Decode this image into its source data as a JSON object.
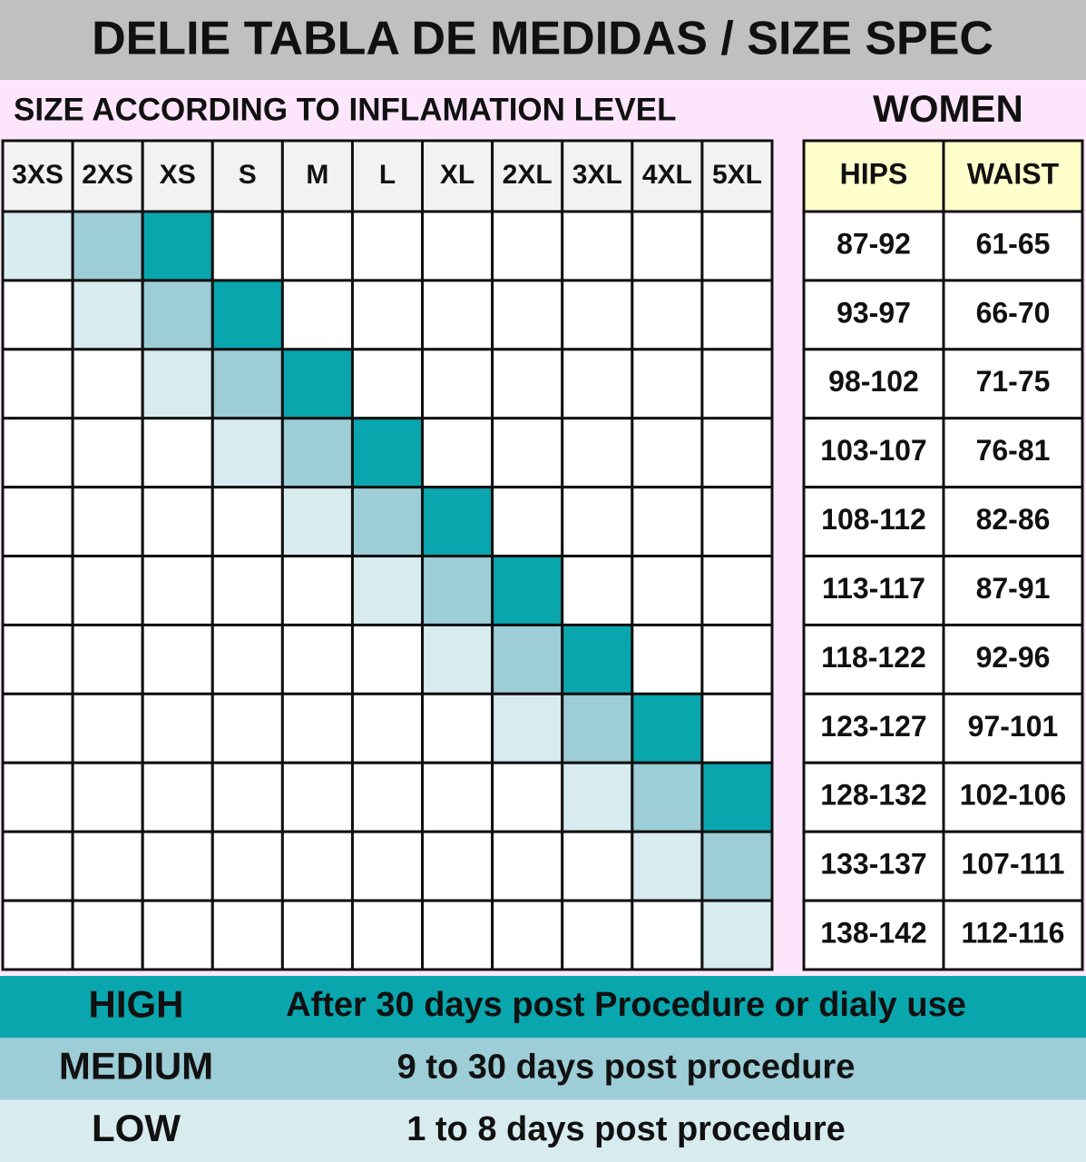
{
  "title": "DELIE TABLA DE MEDIDAS / SIZE SPEC",
  "subtitle": "SIZE ACCORDING TO INFLAMATION LEVEL",
  "section": "WOMEN",
  "sizes": [
    "3XS",
    "2XS",
    "XS",
    "S",
    "M",
    "L",
    "XL",
    "2XL",
    "3XL",
    "4XL",
    "5XL"
  ],
  "grid": [
    [
      2,
      1,
      0,
      null,
      null,
      null,
      null,
      null,
      null,
      null,
      null
    ],
    [
      null,
      2,
      1,
      0,
      null,
      null,
      null,
      null,
      null,
      null,
      null
    ],
    [
      null,
      null,
      2,
      1,
      0,
      null,
      null,
      null,
      null,
      null,
      null
    ],
    [
      null,
      null,
      null,
      2,
      1,
      0,
      null,
      null,
      null,
      null,
      null
    ],
    [
      null,
      null,
      null,
      null,
      2,
      1,
      0,
      null,
      null,
      null,
      null
    ],
    [
      null,
      null,
      null,
      null,
      null,
      2,
      1,
      0,
      null,
      null,
      null
    ],
    [
      null,
      null,
      null,
      null,
      null,
      null,
      2,
      1,
      0,
      null,
      null
    ],
    [
      null,
      null,
      null,
      null,
      null,
      null,
      null,
      2,
      1,
      0,
      null
    ],
    [
      null,
      null,
      null,
      null,
      null,
      null,
      null,
      null,
      2,
      1,
      0
    ],
    [
      null,
      null,
      null,
      null,
      null,
      null,
      null,
      null,
      null,
      2,
      1
    ],
    [
      null,
      null,
      null,
      null,
      null,
      null,
      null,
      null,
      null,
      null,
      2
    ]
  ],
  "measures": {
    "headers": [
      "HIPS",
      "WAIST"
    ],
    "rows": [
      [
        "87-92",
        "61-65"
      ],
      [
        "93-97",
        "66-70"
      ],
      [
        "98-102",
        "71-75"
      ],
      [
        "103-107",
        "76-81"
      ],
      [
        "108-112",
        "82-86"
      ],
      [
        "113-117",
        "87-91"
      ],
      [
        "118-122",
        "92-96"
      ],
      [
        "123-127",
        "97-101"
      ],
      [
        "128-132",
        "102-106"
      ],
      [
        "133-137",
        "107-111"
      ],
      [
        "138-142",
        "112-116"
      ]
    ]
  },
  "legend": [
    {
      "level": "HIGH",
      "description": "After 30 days post Procedure or dialy use",
      "color": "#0aa6ae"
    },
    {
      "level": "MEDIUM",
      "description": "9 to 30 days post procedure",
      "color": "#9dcdd7"
    },
    {
      "level": "LOW",
      "description": "1 to 8 days post procedure",
      "color": "#d8ecf0"
    }
  ]
}
